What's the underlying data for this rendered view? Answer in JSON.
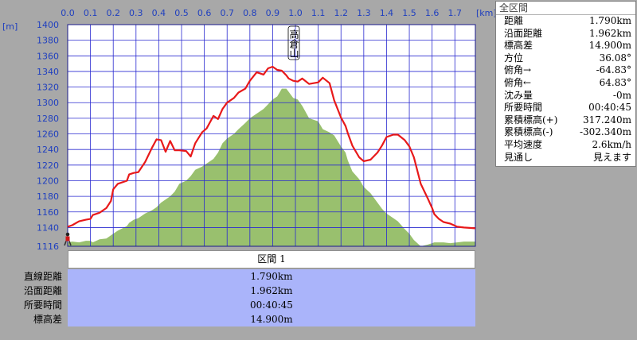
{
  "chart_data": {
    "type": "area",
    "x_ticks": [
      "0.0",
      "0.1",
      "0.2",
      "0.3",
      "0.4",
      "0.5",
      "0.6",
      "0.7",
      "0.8",
      "0.9",
      "1.0",
      "1.1",
      "1.2",
      "1.3",
      "1.4",
      "1.5",
      "1.6",
      "1.7"
    ],
    "x_unit": "[km]",
    "y_ticks": [
      "1400",
      "1380",
      "1360",
      "1340",
      "1320",
      "1300",
      "1280",
      "1260",
      "1240",
      "1220",
      "1200",
      "1180",
      "1160",
      "1140",
      "1116"
    ],
    "y_unit": "[m]",
    "xlim": [
      0,
      1.79
    ],
    "ylim": [
      1116,
      1400
    ],
    "peak_label": "高倉山",
    "route_profile": {
      "color": "#e8191a",
      "x": [
        0.0,
        0.02,
        0.05,
        0.08,
        0.1,
        0.11,
        0.14,
        0.17,
        0.19,
        0.2,
        0.22,
        0.26,
        0.27,
        0.29,
        0.31,
        0.34,
        0.37,
        0.39,
        0.41,
        0.43,
        0.45,
        0.47,
        0.49,
        0.52,
        0.54,
        0.56,
        0.59,
        0.61,
        0.64,
        0.66,
        0.68,
        0.7,
        0.73,
        0.75,
        0.78,
        0.8,
        0.83,
        0.86,
        0.88,
        0.9,
        0.92,
        0.94,
        0.96,
        0.97,
        0.99,
        1.01,
        1.03,
        1.06,
        1.1,
        1.12,
        1.15,
        1.17,
        1.2,
        1.22,
        1.23,
        1.25,
        1.28,
        1.3,
        1.33,
        1.36,
        1.38,
        1.4,
        1.43,
        1.45,
        1.48,
        1.5,
        1.52,
        1.55,
        1.58,
        1.6,
        1.61,
        1.63,
        1.65,
        1.68,
        1.71,
        1.74,
        1.79
      ],
      "y": [
        1141,
        1143,
        1148,
        1150,
        1151,
        1156,
        1159,
        1165,
        1174,
        1189,
        1196,
        1200,
        1208,
        1210,
        1211,
        1224,
        1242,
        1253,
        1252,
        1237,
        1251,
        1239,
        1239,
        1238,
        1231,
        1248,
        1262,
        1267,
        1283,
        1279,
        1292,
        1300,
        1306,
        1313,
        1318,
        1328,
        1339,
        1336,
        1344,
        1346,
        1342,
        1341,
        1335,
        1331,
        1328,
        1327,
        1331,
        1324,
        1326,
        1332,
        1325,
        1303,
        1281,
        1270,
        1261,
        1245,
        1230,
        1225,
        1227,
        1236,
        1245,
        1256,
        1259,
        1259,
        1252,
        1244,
        1230,
        1196,
        1178,
        1165,
        1157,
        1151,
        1147,
        1145,
        1141,
        1140,
        1139
      ]
    },
    "terrain_profile": {
      "color": "#99c06e",
      "x": [
        0.0,
        0.02,
        0.05,
        0.08,
        0.1,
        0.11,
        0.14,
        0.17,
        0.19,
        0.2,
        0.22,
        0.26,
        0.27,
        0.29,
        0.31,
        0.34,
        0.37,
        0.39,
        0.41,
        0.43,
        0.45,
        0.47,
        0.49,
        0.52,
        0.54,
        0.56,
        0.59,
        0.61,
        0.64,
        0.66,
        0.68,
        0.7,
        0.73,
        0.75,
        0.78,
        0.8,
        0.83,
        0.86,
        0.88,
        0.9,
        0.92,
        0.94,
        0.96,
        0.97,
        0.99,
        1.01,
        1.03,
        1.06,
        1.1,
        1.12,
        1.15,
        1.17,
        1.2,
        1.22,
        1.23,
        1.25,
        1.28,
        1.3,
        1.33,
        1.36,
        1.38,
        1.4,
        1.43,
        1.45,
        1.48,
        1.5,
        1.52,
        1.55,
        1.58,
        1.6,
        1.61,
        1.63,
        1.65,
        1.68,
        1.71,
        1.74,
        1.79
      ],
      "y": [
        1121,
        1122,
        1121,
        1123,
        1123,
        1121,
        1125,
        1126,
        1130,
        1132,
        1136,
        1142,
        1146,
        1150,
        1152,
        1158,
        1162,
        1166,
        1172,
        1176,
        1180,
        1186,
        1196,
        1200,
        1206,
        1214,
        1218,
        1222,
        1228,
        1236,
        1248,
        1254,
        1260,
        1266,
        1274,
        1280,
        1286,
        1292,
        1298,
        1304,
        1308,
        1318,
        1318,
        1314,
        1306,
        1304,
        1296,
        1280,
        1276,
        1266,
        1262,
        1258,
        1244,
        1236,
        1226,
        1212,
        1202,
        1192,
        1184,
        1172,
        1164,
        1158,
        1152,
        1148,
        1138,
        1132,
        1124,
        1116,
        1118,
        1120,
        1121,
        1121,
        1121,
        1120,
        1121,
        1122,
        1122
      ]
    }
  },
  "info_panel": {
    "title": "全区間",
    "rows": [
      {
        "label": "距離",
        "value": "1.790km"
      },
      {
        "label": "沿面距離",
        "value": "1.962km"
      },
      {
        "label": "標高差",
        "value": "14.900m"
      },
      {
        "label": "方位",
        "value": "36.08°"
      },
      {
        "label": "俯角→",
        "value": "-64.83°"
      },
      {
        "label": "俯角←",
        "value": "64.83°"
      },
      {
        "label": "沈み量",
        "value": "-0m"
      },
      {
        "label": "所要時間",
        "value": "00:40:45"
      },
      {
        "label": "累積標高(+)",
        "value": "317.240m"
      },
      {
        "label": "累積標高(-)",
        "value": "-302.340m"
      },
      {
        "label": "平均速度",
        "value": "2.6km/h"
      },
      {
        "label": "見通し",
        "value": "見えます"
      }
    ]
  },
  "segment": {
    "header": "区間 1",
    "rows": [
      {
        "label": "直線距離",
        "value": "1.790km"
      },
      {
        "label": "沿面距離",
        "value": "1.962km"
      },
      {
        "label": "所要時間",
        "value": "00:40:45"
      },
      {
        "label": "標高差",
        "value": "14.900m"
      }
    ]
  },
  "colors": {
    "grid": "#2a2ad0",
    "plot_bg": "#ffffff",
    "table_bg": "#aab4fa",
    "window_bg": "#a8a8a8"
  },
  "icons": [
    "walker-icon"
  ]
}
